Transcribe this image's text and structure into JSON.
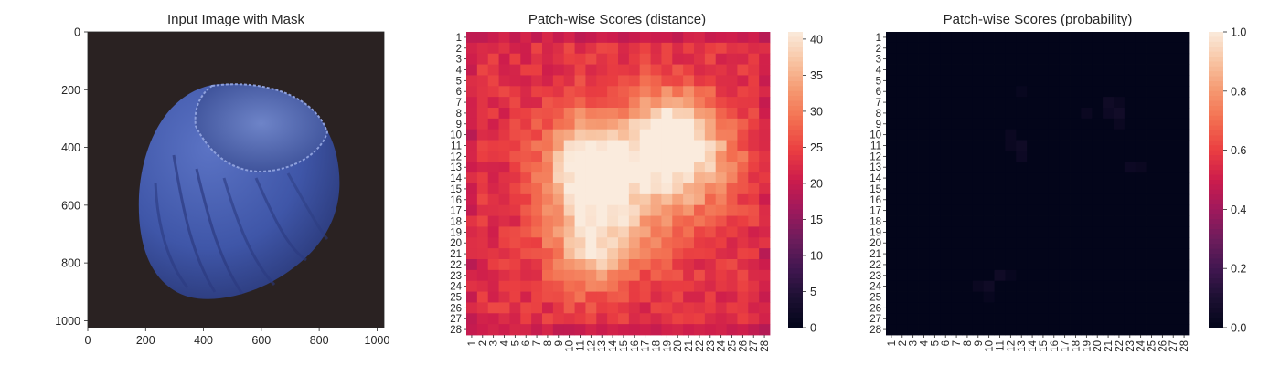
{
  "chart_data": [
    {
      "type": "image",
      "title": "Input Image with Mask",
      "xlim": [
        0,
        1024
      ],
      "ylim": [
        1024,
        0
      ],
      "x_ticks": [
        0,
        200,
        400,
        600,
        800,
        1000
      ],
      "y_ticks": [
        0,
        200,
        400,
        600,
        800,
        1000
      ],
      "image_content": "hazelnut",
      "colors": {
        "background": "#2a2222",
        "object": "#3f56a8",
        "object_highlight": "#7a8fd0",
        "object_dark": "#24306a"
      }
    },
    {
      "type": "heatmap",
      "title": "Patch-wise Scores (distance)",
      "rows": 28,
      "cols": 28,
      "row_labels": [
        "1",
        "2",
        "3",
        "4",
        "5",
        "6",
        "7",
        "8",
        "9",
        "10",
        "11",
        "12",
        "13",
        "14",
        "15",
        "16",
        "17",
        "18",
        "19",
        "20",
        "21",
        "22",
        "23",
        "24",
        "25",
        "26",
        "27",
        "28"
      ],
      "col_labels": [
        "1",
        "2",
        "3",
        "4",
        "5",
        "6",
        "7",
        "8",
        "9",
        "10",
        "11",
        "12",
        "13",
        "14",
        "15",
        "16",
        "17",
        "18",
        "19",
        "20",
        "21",
        "22",
        "23",
        "24",
        "25",
        "26",
        "27",
        "28"
      ],
      "colorbar": {
        "min": 0,
        "max": 41,
        "ticks": [
          0,
          5,
          10,
          15,
          20,
          25,
          30,
          35,
          40
        ]
      },
      "colormap": "rocket",
      "value_model": {
        "base": 23,
        "blobs": [
          {
            "row": 12,
            "col": 12,
            "peak": 17,
            "spread": 3.0
          },
          {
            "row": 12,
            "col": 21,
            "peak": 15,
            "spread": 3.2
          },
          {
            "row": 9,
            "col": 19,
            "peak": 11,
            "spread": 2.6
          },
          {
            "row": 21,
            "col": 12,
            "peak": 13,
            "spread": 2.6
          },
          {
            "row": 16,
            "col": 12,
            "peak": 9,
            "spread": 3.0
          },
          {
            "row": 17,
            "col": 17,
            "peak": 7,
            "spread": 3.5
          }
        ],
        "border_rows_low": [
          1
        ],
        "border_value": 19
      }
    },
    {
      "type": "heatmap",
      "title": "Patch-wise Scores (probability)",
      "rows": 28,
      "cols": 28,
      "row_labels": [
        "1",
        "2",
        "3",
        "4",
        "5",
        "6",
        "7",
        "8",
        "9",
        "10",
        "11",
        "12",
        "13",
        "14",
        "15",
        "16",
        "17",
        "18",
        "19",
        "20",
        "21",
        "22",
        "23",
        "24",
        "25",
        "26",
        "27",
        "28"
      ],
      "col_labels": [
        "1",
        "2",
        "3",
        "4",
        "5",
        "6",
        "7",
        "8",
        "9",
        "10",
        "11",
        "12",
        "13",
        "14",
        "15",
        "16",
        "17",
        "18",
        "19",
        "20",
        "21",
        "22",
        "23",
        "24",
        "25",
        "26",
        "27",
        "28"
      ],
      "colorbar": {
        "min": 0.0,
        "max": 1.0,
        "ticks": [
          "0.0",
          "0.2",
          "0.4",
          "0.6",
          "0.8",
          "1.0"
        ]
      },
      "colormap": "rocket",
      "value_model": {
        "base": 0.0,
        "cells": [
          {
            "row": 8,
            "col": 22,
            "value": 0.06
          },
          {
            "row": 7,
            "col": 21,
            "value": 0.05
          },
          {
            "row": 8,
            "col": 21,
            "value": 0.04
          },
          {
            "row": 9,
            "col": 22,
            "value": 0.03
          },
          {
            "row": 6,
            "col": 13,
            "value": 0.02
          },
          {
            "row": 11,
            "col": 13,
            "value": 0.05
          },
          {
            "row": 12,
            "col": 13,
            "value": 0.04
          },
          {
            "row": 10,
            "col": 12,
            "value": 0.03
          },
          {
            "row": 11,
            "col": 12,
            "value": 0.03
          },
          {
            "row": 13,
            "col": 23,
            "value": 0.04
          },
          {
            "row": 13,
            "col": 24,
            "value": 0.03
          },
          {
            "row": 8,
            "col": 19,
            "value": 0.03
          },
          {
            "row": 7,
            "col": 22,
            "value": 0.03
          },
          {
            "row": 23,
            "col": 11,
            "value": 0.05
          },
          {
            "row": 24,
            "col": 10,
            "value": 0.05
          },
          {
            "row": 24,
            "col": 9,
            "value": 0.03
          },
          {
            "row": 25,
            "col": 10,
            "value": 0.02
          },
          {
            "row": 23,
            "col": 12,
            "value": 0.02
          }
        ]
      }
    }
  ]
}
